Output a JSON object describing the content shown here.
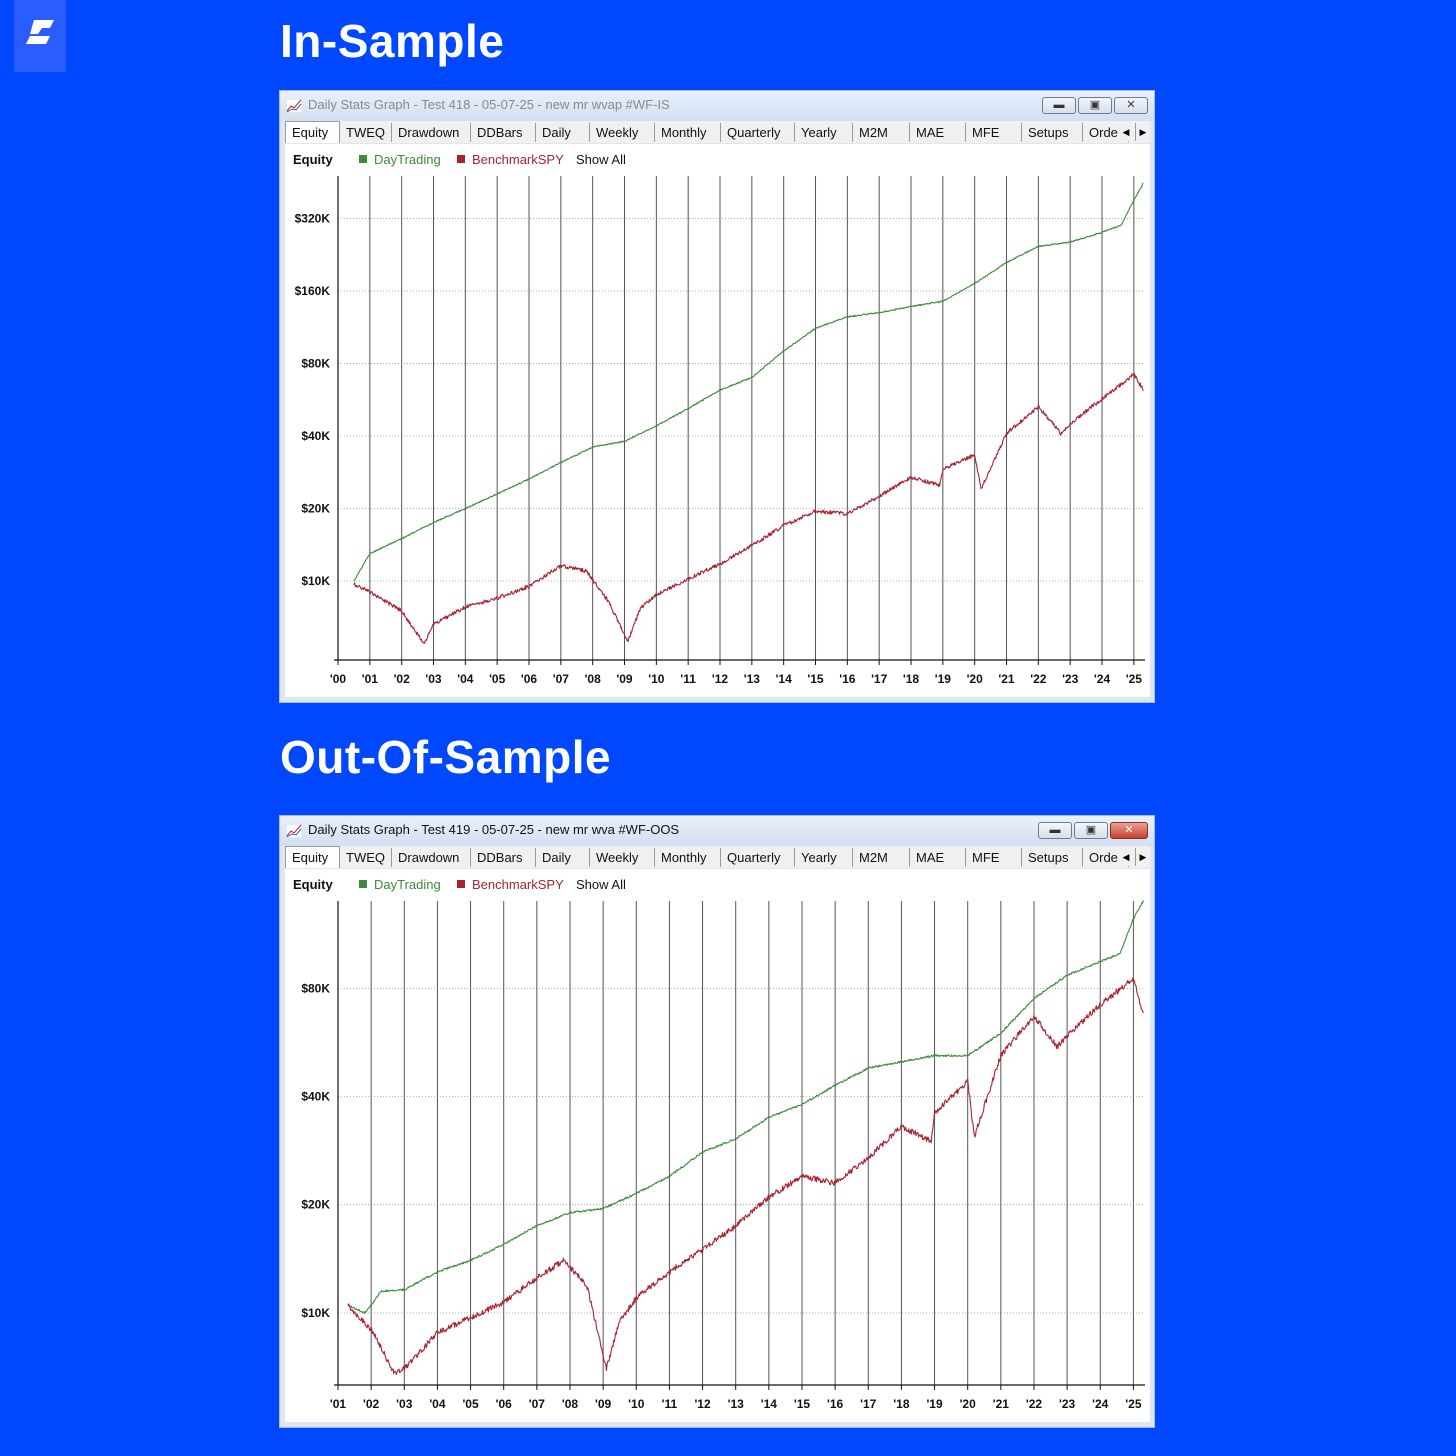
{
  "logo_icon": "slash-logo-icon",
  "sections": [
    {
      "heading": "In-Sample",
      "window": {
        "title": "Daily Stats Graph - Test 418 - 05-07-25 - new mr wvap #WF-IS",
        "title_color": "#8a8a8a",
        "close_style": "inactive"
      }
    },
    {
      "heading": "Out-Of-Sample",
      "window": {
        "title": "Daily Stats Graph - Test 419 - 05-07-25 - new mr wva #WF-OOS",
        "title_color": "#111111",
        "close_style": "red"
      }
    }
  ],
  "tabs": [
    "Equity",
    "TWEQ",
    "Drawdown",
    "DDBars",
    "Daily",
    "Weekly",
    "Monthly",
    "Quarterly",
    "Yearly",
    "M2M",
    "MAE",
    "MFE",
    "Setups",
    "Orde"
  ],
  "active_tab": "Equity",
  "legend": {
    "title": "Equity",
    "items": [
      {
        "label": "DayTrading",
        "color": "#3c8a3c"
      },
      {
        "label": "BenchmarkSPY",
        "color": "#a8232f"
      }
    ],
    "show_all": "Show All"
  },
  "chart_data": [
    {
      "type": "line",
      "scale": "log",
      "x_tick_labels": [
        "'00",
        "'01",
        "'02",
        "'03",
        "'04",
        "'05",
        "'06",
        "'07",
        "'08",
        "'09",
        "'10",
        "'11",
        "'12",
        "'13",
        "'14",
        "'15",
        "'16",
        "'17",
        "'18",
        "'19",
        "'20",
        "'21",
        "'22",
        "'23",
        "'24",
        "'25"
      ],
      "x_range": [
        2000.0,
        2025.35
      ],
      "y_ticks": [
        {
          "label": "$10K",
          "value": 10000
        },
        {
          "label": "$20K",
          "value": 20000
        },
        {
          "label": "$40K",
          "value": 40000
        },
        {
          "label": "$80K",
          "value": 80000
        },
        {
          "label": "$160K",
          "value": 160000
        },
        {
          "label": "$320K",
          "value": 320000
        }
      ],
      "y_range": [
        4700,
        480000
      ],
      "grid": "vertical lines at years, dotted horizontal at y ticks",
      "series": [
        {
          "name": "DayTrading",
          "color": "#3c8a3c",
          "x": [
            2000.5,
            2001,
            2002,
            2003,
            2004,
            2005,
            2006,
            2007,
            2008,
            2009,
            2010,
            2011,
            2012,
            2013,
            2014,
            2015,
            2016,
            2017,
            2018,
            2019,
            2020,
            2021,
            2022,
            2023,
            2024,
            2024.6,
            2025,
            2025.3
          ],
          "y": [
            10000,
            13000,
            15000,
            17500,
            20000,
            23000,
            26500,
            31000,
            36000,
            38000,
            44000,
            52000,
            62000,
            70000,
            90000,
            112000,
            125000,
            130000,
            138000,
            145000,
            172000,
            210000,
            245000,
            255000,
            280000,
            300000,
            380000,
            450000
          ]
        },
        {
          "name": "BenchmarkSPY",
          "color": "#a8232f",
          "x": [
            2000.5,
            2001,
            2002,
            2002.7,
            2003,
            2004,
            2005,
            2006,
            2007,
            2007.8,
            2008.5,
            2009.1,
            2009.5,
            2010,
            2011,
            2012,
            2013,
            2014,
            2015,
            2016,
            2017,
            2018,
            2018.9,
            2019,
            2020,
            2020.2,
            2021,
            2022,
            2022.7,
            2023,
            2024,
            2025,
            2025.3
          ],
          "y": [
            9700,
            9000,
            7500,
            5500,
            6600,
            7800,
            8500,
            9500,
            11600,
            11000,
            8200,
            5600,
            7700,
            8800,
            10200,
            11800,
            14000,
            17000,
            19500,
            19000,
            22500,
            27000,
            25000,
            29000,
            33500,
            24000,
            41000,
            53000,
            41000,
            45000,
            57000,
            72000,
            62000
          ]
        }
      ]
    },
    {
      "type": "line",
      "scale": "log",
      "x_tick_labels": [
        "'01",
        "'02",
        "'03",
        "'04",
        "'05",
        "'06",
        "'07",
        "'08",
        "'09",
        "'10",
        "'11",
        "'12",
        "'13",
        "'14",
        "'15",
        "'16",
        "'17",
        "'18",
        "'19",
        "'20",
        "'21",
        "'22",
        "'23",
        "'24",
        "'25"
      ],
      "x_range": [
        2001.0,
        2025.35
      ],
      "y_ticks": [
        {
          "label": "$10K",
          "value": 10000
        },
        {
          "label": "$20K",
          "value": 20000
        },
        {
          "label": "$40K",
          "value": 40000
        },
        {
          "label": "$80K",
          "value": 80000
        }
      ],
      "y_range": [
        6300,
        140000
      ],
      "grid": "vertical lines at years, dotted horizontal at y ticks",
      "series": [
        {
          "name": "DayTrading",
          "color": "#3c8a3c",
          "x": [
            2001.3,
            2001.8,
            2002,
            2002.3,
            2003,
            2004,
            2005,
            2006,
            2007,
            2008,
            2009,
            2010,
            2011,
            2012,
            2013,
            2014,
            2015,
            2016,
            2017,
            2018,
            2019,
            2020,
            2021,
            2022,
            2023,
            2024,
            2024.6,
            2025,
            2025.3
          ],
          "y": [
            10500,
            10000,
            10500,
            11500,
            11600,
            13000,
            14000,
            15500,
            17500,
            19000,
            19500,
            21500,
            24000,
            28000,
            30500,
            35000,
            38000,
            43000,
            48000,
            50000,
            52000,
            52000,
            60000,
            75000,
            87000,
            95000,
            100000,
            125000,
            140000
          ]
        },
        {
          "name": "BenchmarkSPY",
          "color": "#a8232f",
          "x": [
            2001.3,
            2002,
            2002.7,
            2003,
            2004,
            2005,
            2006,
            2007,
            2007.8,
            2008.5,
            2009.1,
            2009.5,
            2010,
            2011,
            2012,
            2013,
            2014,
            2015,
            2016,
            2017,
            2018,
            2018.9,
            2019,
            2020,
            2020.2,
            2021,
            2022,
            2022.7,
            2023,
            2024,
            2025,
            2025.3
          ],
          "y": [
            10500,
            9000,
            6800,
            7000,
            8800,
            9700,
            10700,
            12500,
            14000,
            12000,
            7000,
            9500,
            11000,
            13000,
            15000,
            17500,
            21000,
            24000,
            23000,
            27000,
            33000,
            30000,
            36000,
            44000,
            31000,
            52000,
            67000,
            55000,
            59000,
            72000,
            85000,
            68000
          ]
        }
      ]
    }
  ]
}
